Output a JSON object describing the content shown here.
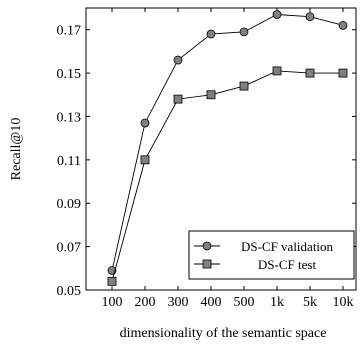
{
  "chart_data": {
    "type": "line",
    "title": "",
    "xlabel": "dimensionality of the semantic space",
    "ylabel": "Recall@10",
    "categories": [
      "100",
      "200",
      "300",
      "400",
      "500",
      "1k",
      "5k",
      "10k"
    ],
    "yticks": [
      "0.05",
      "0.07",
      "0.09",
      "0.11",
      "0.13",
      "0.15",
      "0.17"
    ],
    "ylim": [
      0.05,
      0.18
    ],
    "grid": false,
    "legend_position": "bottom-right",
    "series": [
      {
        "name": "DS-CF validation",
        "marker": "circle",
        "color": "#808080",
        "values": [
          0.059,
          0.127,
          0.156,
          0.168,
          0.169,
          0.177,
          0.176,
          0.172
        ]
      },
      {
        "name": "DS-CF test",
        "marker": "square",
        "color": "#808080",
        "values": [
          0.054,
          0.11,
          0.138,
          0.14,
          0.144,
          0.151,
          0.15,
          0.15
        ]
      }
    ]
  }
}
